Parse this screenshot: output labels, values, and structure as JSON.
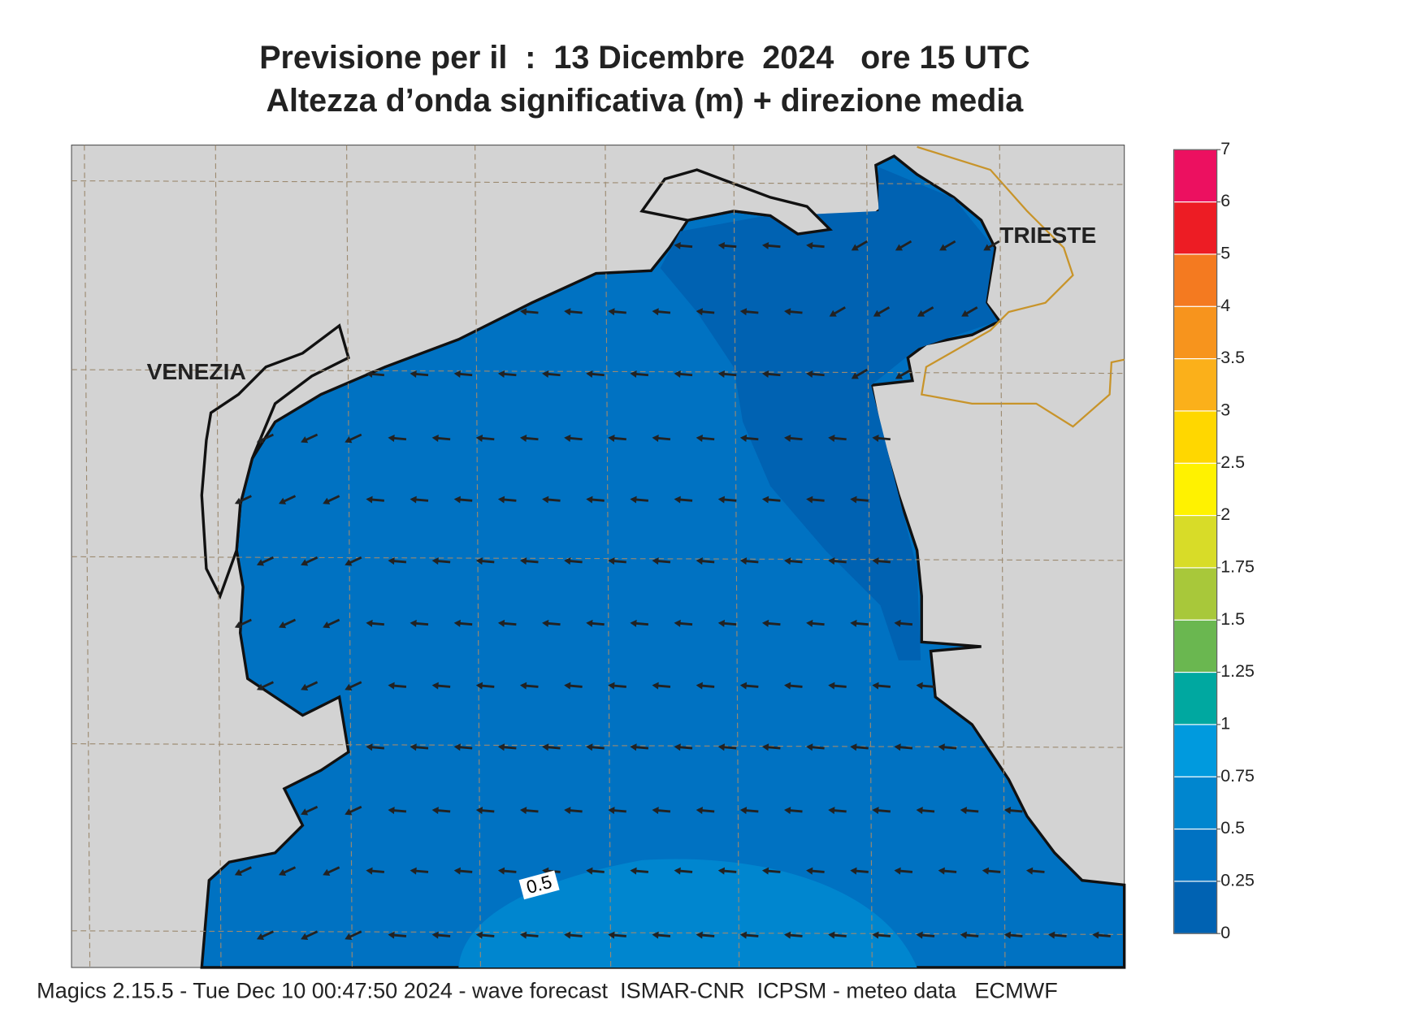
{
  "header": {
    "title": "Previsione per il  :  13 Dicembre  2024   ore 15 UTC",
    "subtitle": "Altezza d’onda significativa (m) + direzione media"
  },
  "map": {
    "labels": [
      "VENEZIA",
      "TRIESTE"
    ],
    "contour_label": 0.5
  },
  "legend": {
    "levels": [
      0,
      0.25,
      0.5,
      0.75,
      1,
      1.25,
      1.5,
      1.75,
      2,
      2.5,
      3,
      3.5,
      4,
      5,
      6,
      7
    ],
    "colors": [
      "#0062b2",
      "#0072c2",
      "#0086cf",
      "#009ade",
      "#00a8a0",
      "#6ab750",
      "#a8c83a",
      "#d8dc28",
      "#fff200",
      "#ffd700",
      "#fbb01a",
      "#f7941d",
      "#f47a20",
      "#ed1c24",
      "#ec1060"
    ]
  },
  "footer": "Magics 2.15.5 - Tue Dec 10 00:47:50 2024 - wave forecast  ISMAR-CNR  ICPSM - meteo data   ECMWF"
}
